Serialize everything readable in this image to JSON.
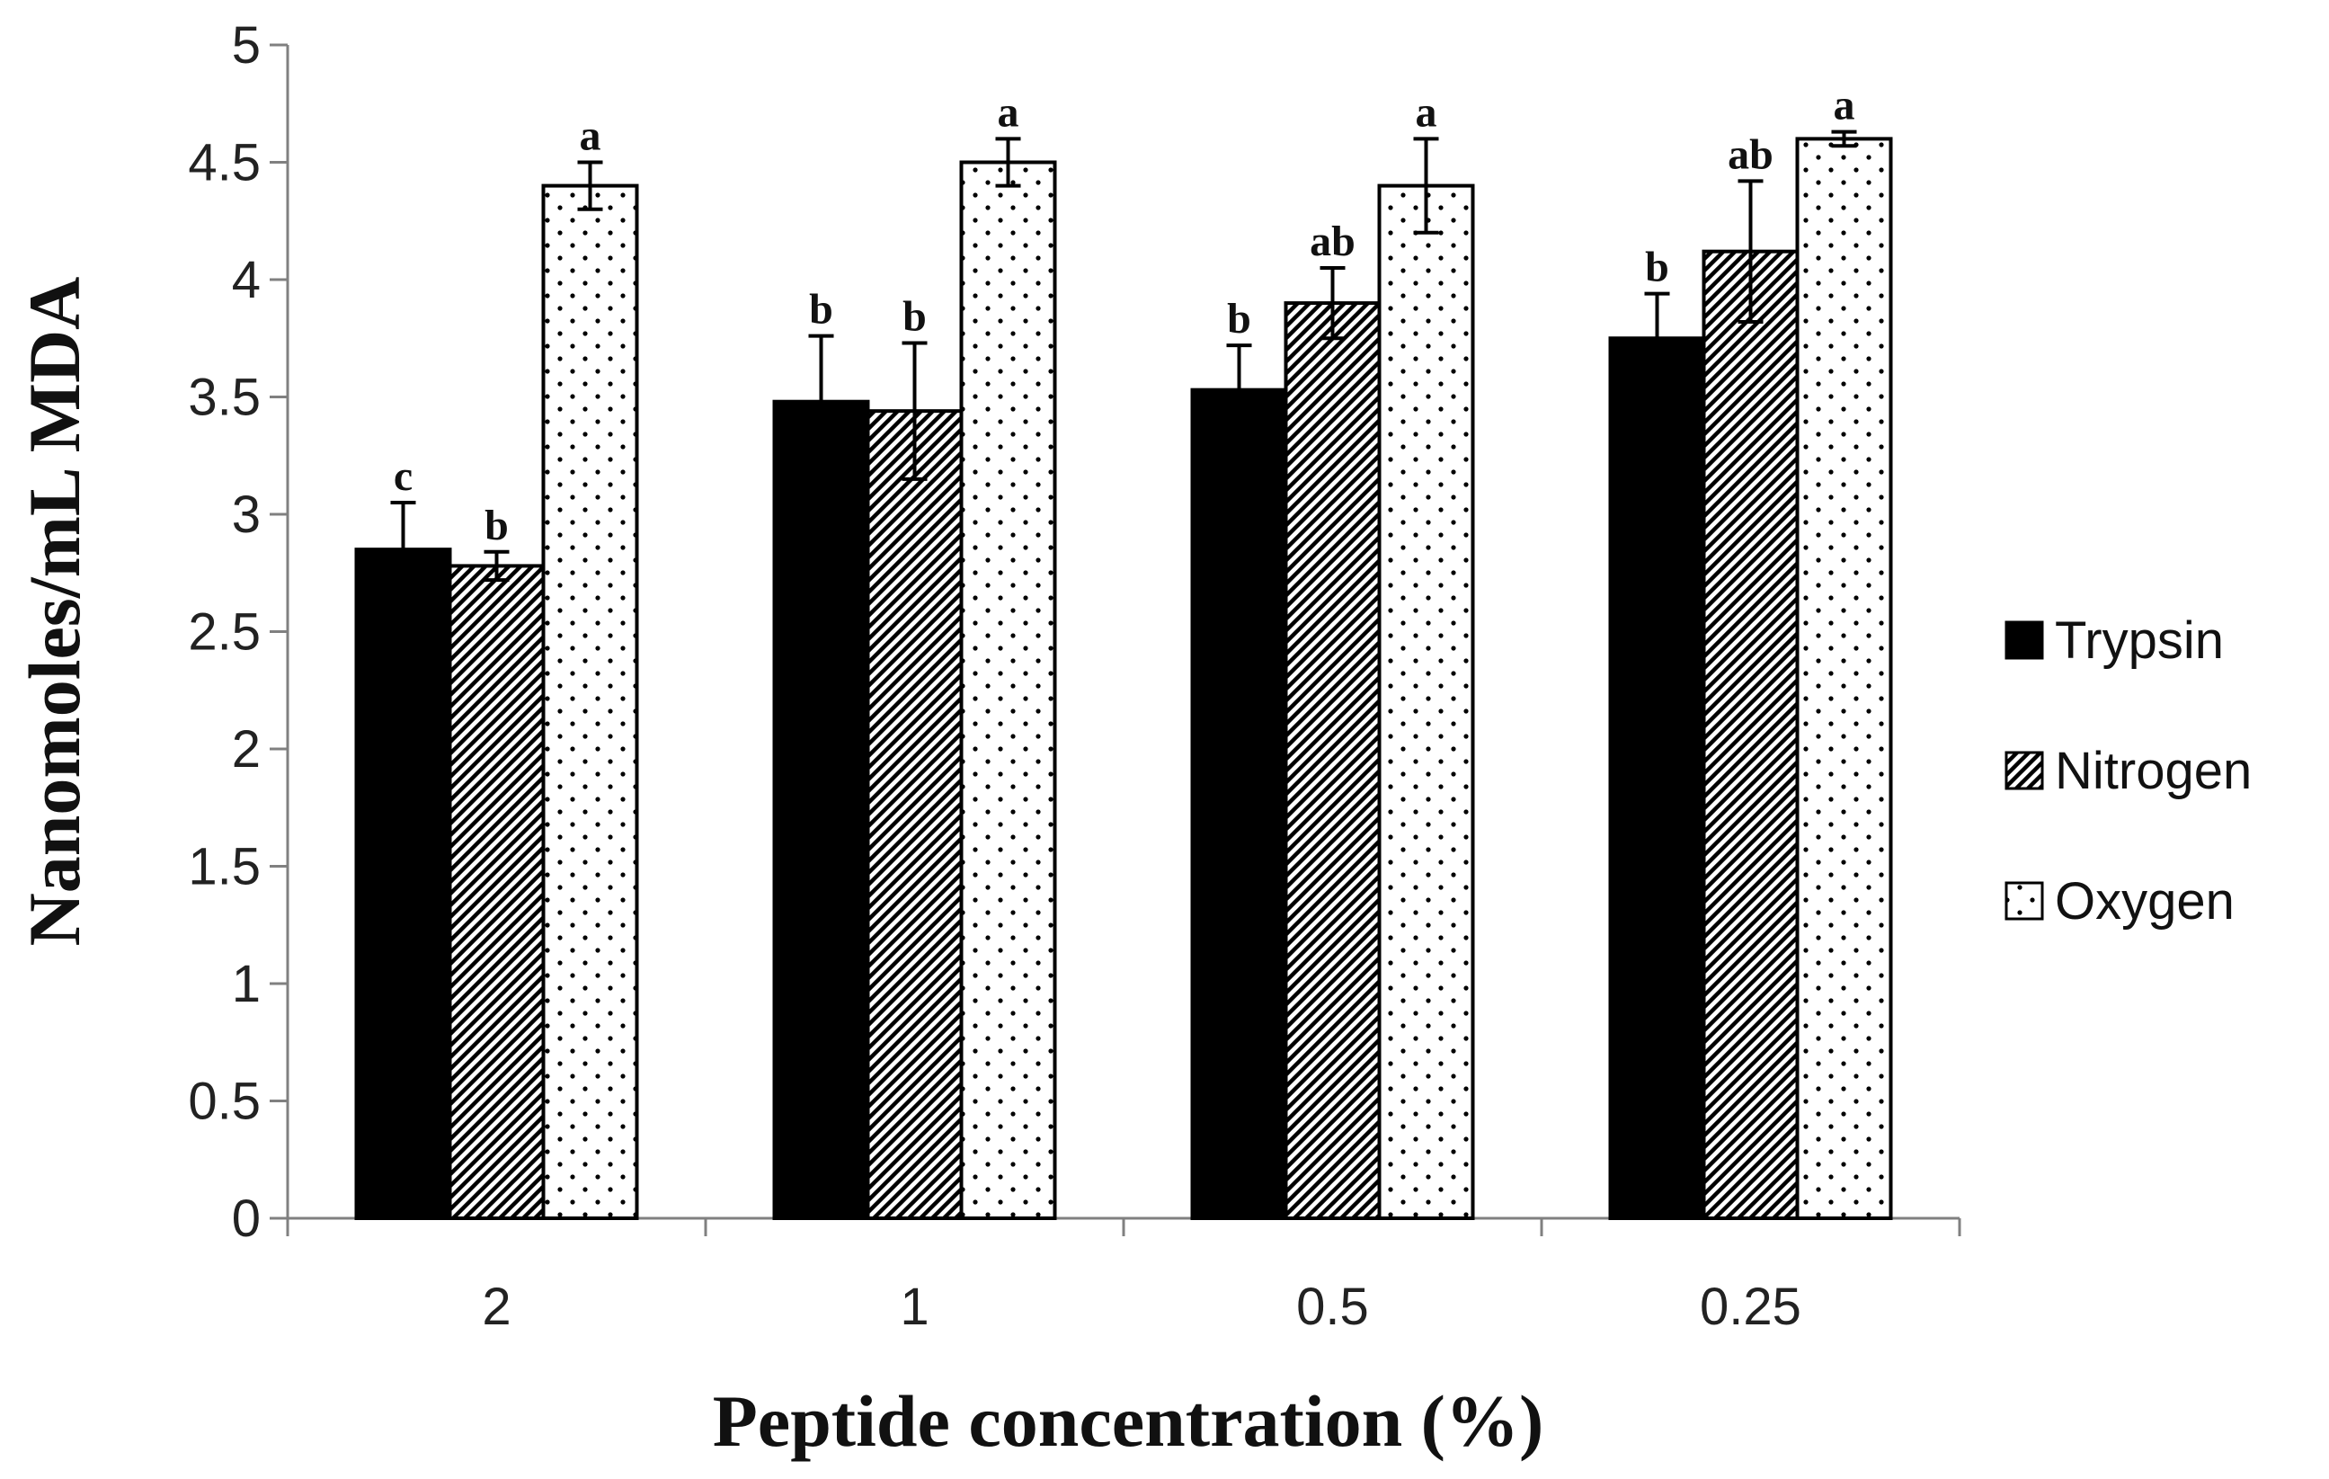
{
  "chart_data": {
    "type": "bar",
    "title": "",
    "xlabel": "Peptide concentration (%)",
    "ylabel": "Nanomoles/mL MDA",
    "ylim": [
      0,
      5
    ],
    "y_ticks": [
      "0",
      "0.5",
      "1",
      "1.5",
      "2",
      "2.5",
      "3",
      "3.5",
      "4",
      "4.5",
      "5"
    ],
    "categories": [
      "2",
      "1",
      "0.5",
      "0.25"
    ],
    "legend_position": "right",
    "series": [
      {
        "name": "Trypsin",
        "pattern": "solid",
        "color": "#000000",
        "values": [
          2.85,
          3.48,
          3.53,
          3.75
        ],
        "errors": [
          0.2,
          0.28,
          0.19,
          0.19
        ],
        "significance": [
          "c",
          "b",
          "b",
          "b"
        ]
      },
      {
        "name": "Nitrogen",
        "pattern": "diagonal-hatch",
        "color": "#000000",
        "values": [
          2.78,
          3.44,
          3.9,
          4.12
        ],
        "errors": [
          0.06,
          0.29,
          0.15,
          0.3
        ],
        "significance": [
          "b",
          "b",
          "ab",
          "ab"
        ]
      },
      {
        "name": "Oxygen",
        "pattern": "dots",
        "color": "#000000",
        "values": [
          4.4,
          4.5,
          4.4,
          4.6
        ],
        "errors": [
          0.1,
          0.1,
          0.2,
          0.03
        ],
        "significance": [
          "a",
          "a",
          "a",
          "a"
        ]
      }
    ]
  }
}
